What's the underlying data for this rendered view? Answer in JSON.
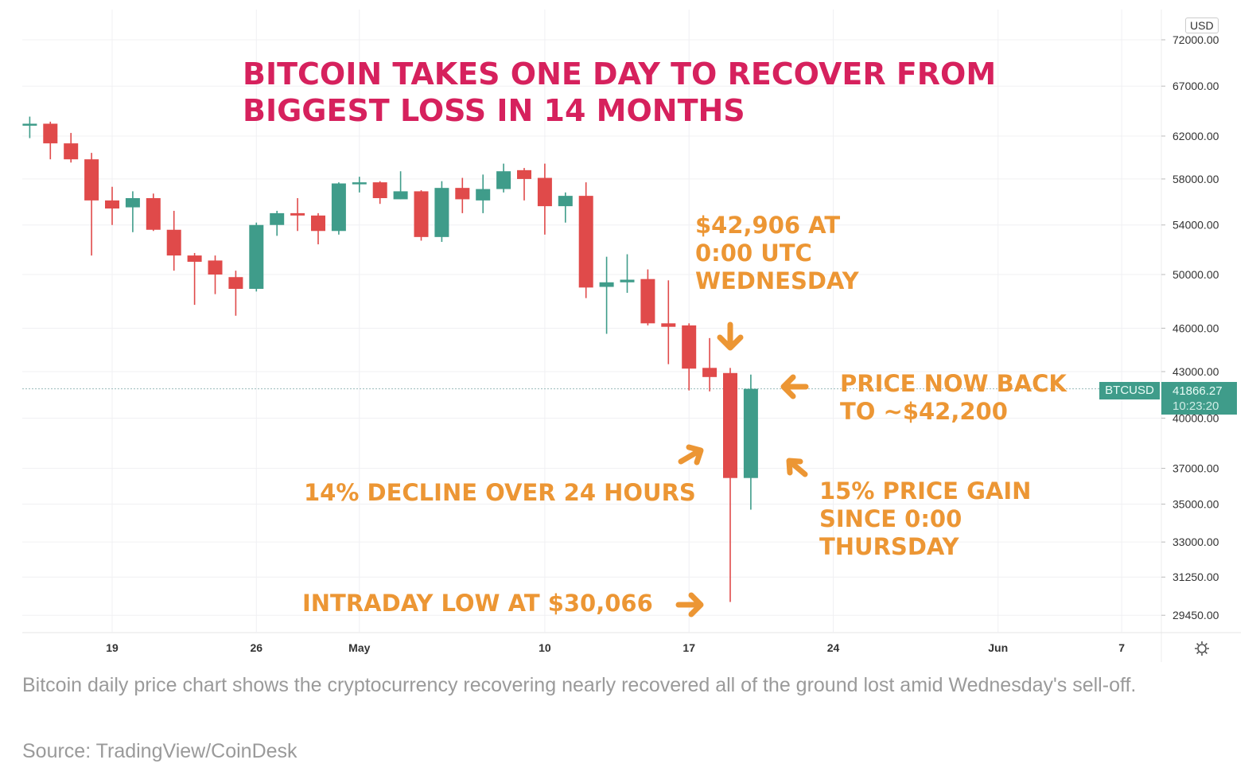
{
  "chart_data": {
    "type": "candlestick",
    "title": "BITCOIN TAKES ONE DAY TO RECOVER FROM\nBIGGEST LOSS IN 14 MONTHS",
    "symbol": "BTCUSD",
    "currency_label": "USD",
    "last_price": "41866.27",
    "countdown": "10:23:20",
    "y_scale": "log",
    "ylim": [
      29000,
      74000
    ],
    "y_ticks": [
      "72000.00",
      "67000.00",
      "62000.00",
      "58000.00",
      "54000.00",
      "50000.00",
      "46000.00",
      "43000.00",
      "40000.00",
      "37000.00",
      "35000.00",
      "33000.00",
      "31250.00",
      "29450.00"
    ],
    "x_ticks": [
      {
        "label": "19",
        "date": "Apr 19"
      },
      {
        "label": "26",
        "date": "Apr 26"
      },
      {
        "label": "May",
        "date": "May 1"
      },
      {
        "label": "10",
        "date": "May 10"
      },
      {
        "label": "17",
        "date": "May 17"
      },
      {
        "label": "24",
        "date": "May 24"
      },
      {
        "label": "Jun",
        "date": "Jun 1"
      },
      {
        "label": "7",
        "date": "Jun 7"
      }
    ],
    "grid": true,
    "colors": {
      "up": "#3f9c8a",
      "down": "#e04a4a",
      "title": "#d6215d",
      "annotation": "#ec9634"
    },
    "candles": [
      {
        "date": "Apr 15",
        "o": 63100,
        "h": 63900,
        "l": 61800,
        "c": 63200
      },
      {
        "date": "Apr 16",
        "o": 63200,
        "h": 63400,
        "l": 59800,
        "c": 61300
      },
      {
        "date": "Apr 17",
        "o": 61300,
        "h": 62300,
        "l": 59500,
        "c": 59800
      },
      {
        "date": "Apr 18",
        "o": 59800,
        "h": 60400,
        "l": 51500,
        "c": 56100
      },
      {
        "date": "Apr 19",
        "o": 56100,
        "h": 57300,
        "l": 54000,
        "c": 55400
      },
      {
        "date": "Apr 20",
        "o": 55500,
        "h": 56900,
        "l": 53400,
        "c": 56300
      },
      {
        "date": "Apr 21",
        "o": 56300,
        "h": 56700,
        "l": 53500,
        "c": 53600
      },
      {
        "date": "Apr 22",
        "o": 53600,
        "h": 55200,
        "l": 50300,
        "c": 51500
      },
      {
        "date": "Apr 23",
        "o": 51500,
        "h": 51700,
        "l": 47700,
        "c": 51000
      },
      {
        "date": "Apr 24",
        "o": 51100,
        "h": 51500,
        "l": 48500,
        "c": 50000
      },
      {
        "date": "Apr 25",
        "o": 49800,
        "h": 50300,
        "l": 46900,
        "c": 48900
      },
      {
        "date": "Apr 26",
        "o": 48900,
        "h": 54200,
        "l": 48700,
        "c": 54000
      },
      {
        "date": "Apr 27",
        "o": 54000,
        "h": 55200,
        "l": 53100,
        "c": 55000
      },
      {
        "date": "Apr 28",
        "o": 55000,
        "h": 56300,
        "l": 53500,
        "c": 54800
      },
      {
        "date": "Apr 29",
        "o": 54800,
        "h": 55000,
        "l": 52400,
        "c": 53500
      },
      {
        "date": "Apr 30",
        "o": 53500,
        "h": 57700,
        "l": 53200,
        "c": 57600
      },
      {
        "date": "May 1",
        "o": 57600,
        "h": 58200,
        "l": 56800,
        "c": 57700
      },
      {
        "date": "May 2",
        "o": 57700,
        "h": 57800,
        "l": 55800,
        "c": 56300
      },
      {
        "date": "May 3",
        "o": 56200,
        "h": 58700,
        "l": 56200,
        "c": 56900
      },
      {
        "date": "May 4",
        "o": 56900,
        "h": 57000,
        "l": 52700,
        "c": 53000
      },
      {
        "date": "May 5",
        "o": 53000,
        "h": 57800,
        "l": 52600,
        "c": 57200
      },
      {
        "date": "May 6",
        "o": 57200,
        "h": 58100,
        "l": 55000,
        "c": 56200
      },
      {
        "date": "May 7",
        "o": 56100,
        "h": 58400,
        "l": 55000,
        "c": 57100
      },
      {
        "date": "May 8",
        "o": 57100,
        "h": 59400,
        "l": 56800,
        "c": 58700
      },
      {
        "date": "May 9",
        "o": 58800,
        "h": 59000,
        "l": 56100,
        "c": 58000
      },
      {
        "date": "May 10",
        "o": 58100,
        "h": 59400,
        "l": 53200,
        "c": 55600
      },
      {
        "date": "May 11",
        "o": 55600,
        "h": 56800,
        "l": 54200,
        "c": 56500
      },
      {
        "date": "May 12",
        "o": 56500,
        "h": 57700,
        "l": 48200,
        "c": 49000
      },
      {
        "date": "May 13",
        "o": 49050,
        "h": 51400,
        "l": 45600,
        "c": 49400
      },
      {
        "date": "May 14",
        "o": 49400,
        "h": 51600,
        "l": 48600,
        "c": 49600
      },
      {
        "date": "May 15",
        "o": 49650,
        "h": 50400,
        "l": 46200,
        "c": 46350
      },
      {
        "date": "May 16",
        "o": 46350,
        "h": 49550,
        "l": 43500,
        "c": 46100
      },
      {
        "date": "May 17",
        "o": 46200,
        "h": 46350,
        "l": 41760,
        "c": 43200
      },
      {
        "date": "May 18",
        "o": 43250,
        "h": 45300,
        "l": 41700,
        "c": 42640
      },
      {
        "date": "May 19",
        "o": 42906,
        "h": 43250,
        "l": 30066,
        "c": 36450
      },
      {
        "date": "May 20",
        "o": 36450,
        "h": 42800,
        "l": 34700,
        "c": 41866
      }
    ],
    "annotations": {
      "open_wed": "$42,906 AT\n0:00 UTC\nWEDNESDAY",
      "now_back": "PRICE NOW BACK\nTO ~$42,200",
      "decline": "14% DECLINE OVER 24 HOURS",
      "gain": "15% PRICE GAIN\nSINCE 0:00\nTHURSDAY",
      "low": "INTRADAY LOW AT $30,066"
    }
  },
  "caption": "Bitcoin daily price chart shows the cryptocurrency recovering nearly recovered all of the ground lost amid Wednesday's sell-off.",
  "source": "Source: TradingView/CoinDesk",
  "icons": {
    "settings": "gear-icon"
  }
}
